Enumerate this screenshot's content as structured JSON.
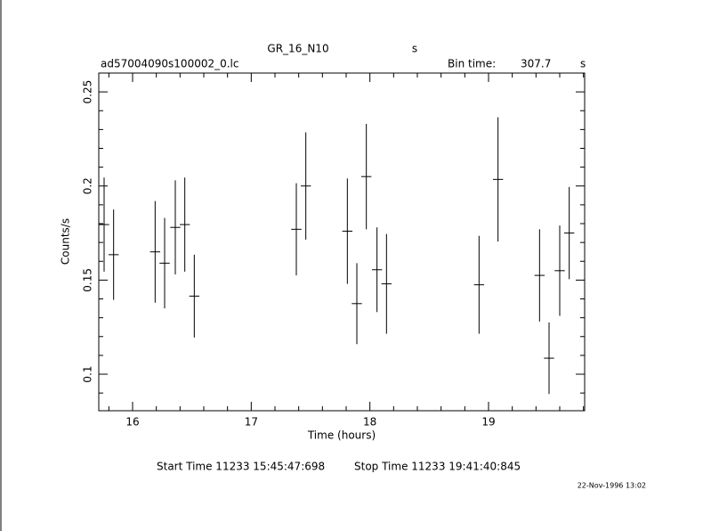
{
  "chart_data": {
    "type": "errorbar",
    "title": "GR_16_N10",
    "title_unit": "s",
    "file_name": "ad57004090s100002_0.lc",
    "bin_time_label": "Bin time:",
    "bin_time": 307.7,
    "bin_time_unit": "s",
    "xlabel": "Time (hours)",
    "ylabel": "Counts/s",
    "start_time": "Start Time 11233 15:45:47:698",
    "stop_time": "Stop Time 11233 19:41:40:845",
    "date_stamp": "22-Nov-1996 13:02",
    "color": "#000000",
    "x": [
      15.76,
      15.84,
      16.19,
      16.27,
      16.36,
      16.44,
      16.52,
      17.38,
      17.46,
      17.81,
      17.89,
      17.97,
      18.06,
      18.14,
      18.92,
      19.08,
      19.43,
      19.51,
      19.6,
      19.68
    ],
    "values": [
      0.1795,
      0.1635,
      0.165,
      0.159,
      0.178,
      0.1795,
      0.1415,
      0.177,
      0.2,
      0.176,
      0.1375,
      0.205,
      0.1555,
      0.148,
      0.1475,
      0.2035,
      0.1525,
      0.1085,
      0.155,
      0.175
    ],
    "errors": [
      0.025,
      0.024,
      0.027,
      0.024,
      0.025,
      0.025,
      0.022,
      0.0245,
      0.0285,
      0.028,
      0.0215,
      0.028,
      0.0225,
      0.0265,
      0.026,
      0.033,
      0.0245,
      0.019,
      0.024,
      0.0245
    ],
    "xlim": [
      15.715,
      19.81
    ],
    "ylim": [
      0.0806,
      0.26
    ],
    "xticks": [
      16,
      17,
      18,
      19
    ],
    "yticks": [
      0.1,
      0.15,
      0.2,
      0.25
    ],
    "xminorticks": [
      15.8,
      16.2,
      16.4,
      16.6,
      16.8,
      17.2,
      17.4,
      17.6,
      17.8,
      18.2,
      18.4,
      18.6,
      18.8,
      19.2,
      19.4,
      19.6,
      19.8
    ],
    "yminorticks": [
      0.09,
      0.11,
      0.12,
      0.13,
      0.14,
      0.16,
      0.17,
      0.18,
      0.19,
      0.21,
      0.22,
      0.23,
      0.24,
      0.26
    ]
  }
}
